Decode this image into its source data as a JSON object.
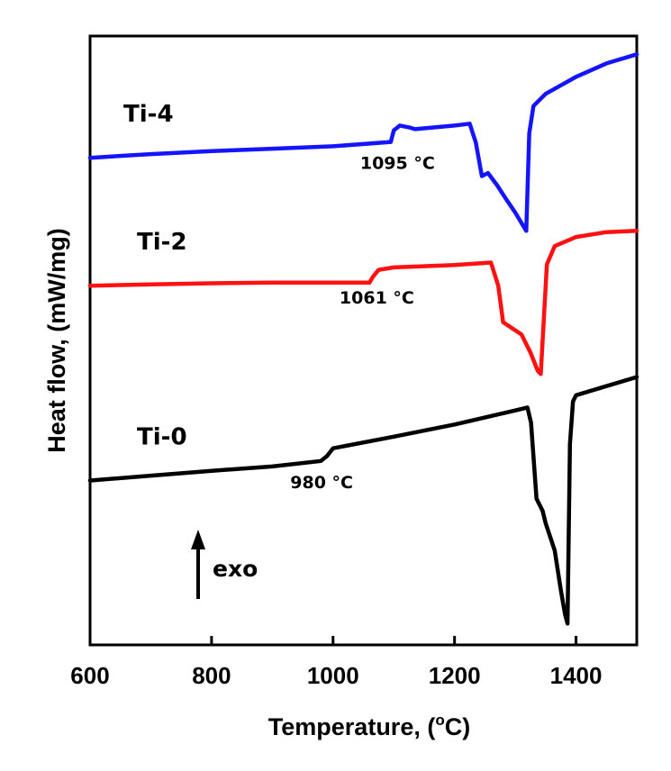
{
  "chart_data": {
    "type": "line",
    "xlabel": "Temperature, (",
    "xlabel_sup": "o",
    "xlabel_end": "C)",
    "ylabel": "Heat flow, (mW/mg)",
    "xlim": [
      600,
      1500
    ],
    "ylim": [
      0,
      100
    ],
    "xticks": [
      600,
      800,
      1000,
      1200,
      1400
    ],
    "xtick_labels": [
      "600",
      "800",
      "1000",
      "1200",
      "1400"
    ],
    "yticks_shown": false,
    "grid": false,
    "annotation": "exo",
    "series": [
      {
        "name": "Ti-4",
        "color": "#1414ff",
        "annotation": "1095 °C",
        "annotation_x": 1095,
        "x": [
          600,
          700,
          800,
          900,
          1000,
          1095,
          1100,
          1110,
          1125,
          1135,
          1200,
          1225,
          1235,
          1245,
          1255,
          1270,
          1285,
          1300,
          1312,
          1318,
          1323,
          1330,
          1350,
          1400,
          1450,
          1500
        ],
        "y": [
          80.0,
          80.6,
          81.1,
          81.5,
          81.9,
          82.6,
          84.5,
          85.3,
          85.0,
          84.7,
          85.3,
          85.6,
          82.5,
          77.0,
          77.5,
          75.5,
          73.2,
          71.0,
          69.0,
          68.0,
          84.0,
          88.5,
          90.5,
          93.3,
          95.5,
          97.0
        ]
      },
      {
        "name": "Ti-2",
        "color": "#ff1111",
        "annotation": "1061 °C",
        "annotation_x": 1061,
        "x": [
          600,
          700,
          800,
          900,
          1000,
          1060,
          1066,
          1075,
          1100,
          1200,
          1260,
          1272,
          1280,
          1295,
          1310,
          1325,
          1337,
          1342,
          1352,
          1365,
          1400,
          1450,
          1500
        ],
        "y": [
          59.0,
          59.2,
          59.4,
          59.5,
          59.5,
          59.5,
          60.5,
          61.6,
          62.0,
          62.4,
          62.8,
          59.0,
          53.0,
          52.0,
          51.0,
          48.0,
          45.0,
          44.5,
          62.5,
          65.5,
          67.0,
          67.8,
          68.0
        ]
      },
      {
        "name": "Ti-0",
        "color": "#000000",
        "annotation": "980 °C",
        "annotation_x": 980,
        "x": [
          600,
          700,
          800,
          900,
          980,
          990,
          1000,
          1100,
          1200,
          1300,
          1320,
          1326,
          1335,
          1345,
          1350,
          1365,
          1375,
          1382,
          1386,
          1390,
          1395,
          1400,
          1450,
          1500
        ],
        "y": [
          27.0,
          27.8,
          28.6,
          29.3,
          30.2,
          31.0,
          32.3,
          34.2,
          36.2,
          38.5,
          39.0,
          36.5,
          24.0,
          22.0,
          20.0,
          15.5,
          9.0,
          5.0,
          3.5,
          33.0,
          40.0,
          41.0,
          42.5,
          44.0
        ]
      }
    ]
  }
}
